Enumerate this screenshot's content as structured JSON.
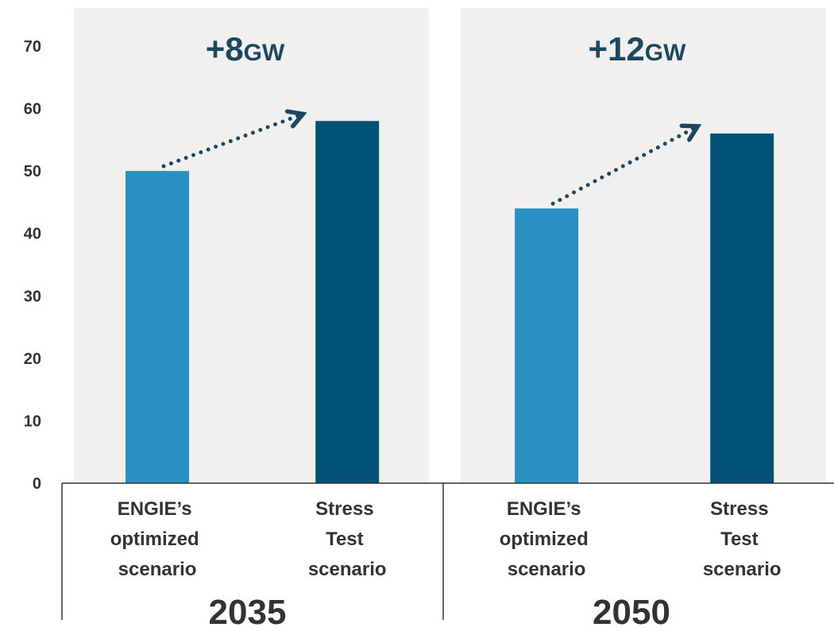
{
  "chart_data": {
    "type": "bar",
    "ylim": [
      0,
      70
    ],
    "yticks": [
      0,
      10,
      20,
      30,
      40,
      50,
      60,
      70
    ],
    "colors": [
      "#2a8fc1",
      "#005277"
    ],
    "groups": [
      {
        "label": "2035",
        "annotation": "+8",
        "annotation_unit": "GW",
        "categories": [
          "ENGIE’s optimized scenario",
          "Stress Test scenario"
        ],
        "values": [
          50,
          58
        ]
      },
      {
        "label": "2050",
        "annotation": "+12",
        "annotation_unit": "GW",
        "categories": [
          "ENGIE’s optimized scenario",
          "Stress Test scenario"
        ],
        "values": [
          44,
          56
        ]
      }
    ]
  }
}
